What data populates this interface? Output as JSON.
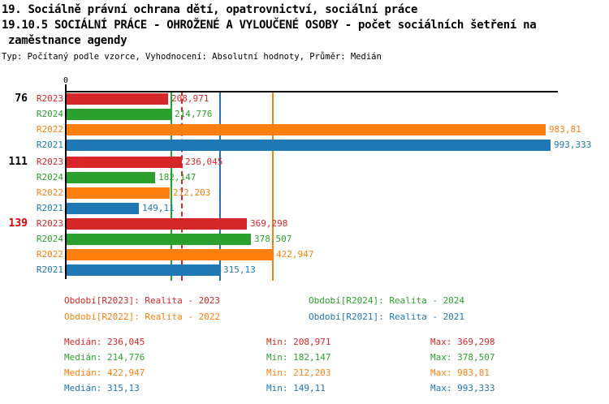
{
  "header": {
    "line1": "19. Sociálně právní ochrana dětí, opatrovnictví, sociální práce",
    "line2": "19.10.5 SOCIÁLNÍ PRÁCE - OHROŽENÉ A VYLOUČENÉ OSOBY - počet sociálních šetření na",
    "line3": "zaměstnance agendy",
    "meta": "Typ: Počítaný podle vzorce, Vyhodnocení: Absolutní hodnoty, Průměr: Medián"
  },
  "chart_data": {
    "type": "bar",
    "orientation": "horizontal",
    "title": "19.10.5 SOCIÁLNÍ PRÁCE - OHROŽENÉ A VYLOUČENÉ OSOBY - počet sociálních šetření na zaměstnance agendy",
    "axis": {
      "zero_label": "0",
      "xlim": [
        0,
        1010
      ],
      "gridlines": "median-reference-lines"
    },
    "series": [
      {
        "id": "R2023",
        "color": "#d62728",
        "legend_label": "Období[R2023]: Realita - 2023",
        "median": 236.045,
        "median_display": "236,045",
        "min_display": "208,971",
        "max_display": "369,298",
        "median_line_dashed": true
      },
      {
        "id": "R2024",
        "color": "#2ca02c",
        "legend_label": "Období[R2024]: Realita - 2024",
        "median": 214.776,
        "median_display": "214,776",
        "min_display": "182,147",
        "max_display": "378,507",
        "median_line_dashed": false
      },
      {
        "id": "R2022",
        "color": "#ff7f0e",
        "legend_label": "Období[R2022]: Realita - 2022",
        "median": 422.947,
        "median_display": "422,947",
        "min_display": "212,203",
        "max_display": "983,81",
        "median_line_dashed": false
      },
      {
        "id": "R2021",
        "color": "#1f77b4",
        "legend_label": "Období[R2021]: Realita - 2021",
        "median": 315.13,
        "median_display": "315,13",
        "min_display": "149,11",
        "max_display": "993,333",
        "median_line_dashed": false
      }
    ],
    "groups": [
      {
        "label": "76",
        "label_color": "#000000",
        "bars": [
          {
            "series": "R2023",
            "value": 208.971,
            "display": "208,971"
          },
          {
            "series": "R2024",
            "value": 214.776,
            "display": "214,776"
          },
          {
            "series": "R2022",
            "value": 983.81,
            "display": "983,81"
          },
          {
            "series": "R2021",
            "value": 993.333,
            "display": "993,333"
          }
        ]
      },
      {
        "label": "111",
        "label_color": "#000000",
        "bars": [
          {
            "series": "R2023",
            "value": 236.045,
            "display": "236,045"
          },
          {
            "series": "R2024",
            "value": 182.147,
            "display": "182,147"
          },
          {
            "series": "R2022",
            "value": 212.203,
            "display": "212,203"
          },
          {
            "series": "R2021",
            "value": 149.11,
            "display": "149,11"
          }
        ]
      },
      {
        "label": "139",
        "label_color": "#dd0000",
        "bars": [
          {
            "series": "R2023",
            "value": 369.298,
            "display": "369,298"
          },
          {
            "series": "R2024",
            "value": 378.507,
            "display": "378,507"
          },
          {
            "series": "R2022",
            "value": 422.947,
            "display": "422,947"
          },
          {
            "series": "R2021",
            "value": 315.13,
            "display": "315,13"
          }
        ]
      }
    ]
  },
  "stats": {
    "median_prefix": "Medián: ",
    "min_prefix": "Min: ",
    "max_prefix": "Max: ",
    "rows": [
      {
        "series": "R2023",
        "median": "236,045",
        "min": "208,971",
        "max": "369,298"
      },
      {
        "series": "R2024",
        "median": "214,776",
        "min": "182,147",
        "max": "378,507"
      },
      {
        "series": "R2022",
        "median": "422,947",
        "min": "212,203",
        "max": "983,81"
      },
      {
        "series": "R2021",
        "median": "315,13",
        "min": "149,11",
        "max": "993,333"
      }
    ]
  }
}
